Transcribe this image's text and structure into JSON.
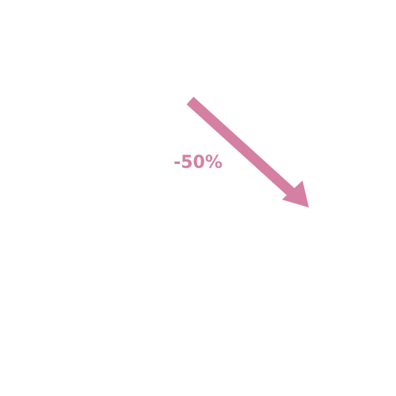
{
  "label": "-50%"
}
